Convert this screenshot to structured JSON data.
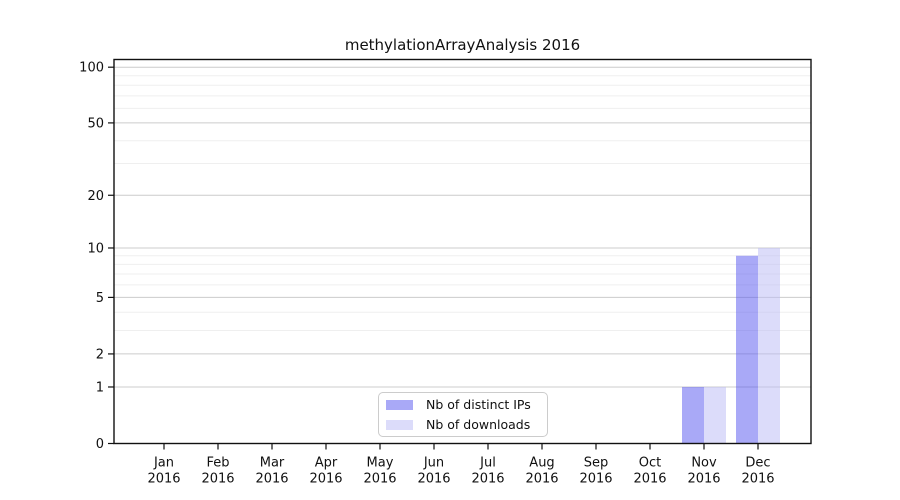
{
  "chart_data": {
    "type": "bar",
    "title": "methylationArrayAnalysis 2016",
    "categories": [
      "Jan",
      "Feb",
      "Mar",
      "Apr",
      "May",
      "Jun",
      "Jul",
      "Aug",
      "Sep",
      "Oct",
      "Nov",
      "Dec"
    ],
    "x_year_label": "2016",
    "series": [
      {
        "name": "Nb of distinct IPs",
        "color": "#a9a9f7",
        "values": [
          0,
          0,
          0,
          0,
          0,
          0,
          0,
          0,
          0,
          0,
          1,
          9
        ]
      },
      {
        "name": "Nb of downloads",
        "color": "#dcdcfa",
        "values": [
          0,
          0,
          0,
          0,
          0,
          0,
          0,
          0,
          0,
          0,
          1,
          10
        ]
      }
    ],
    "y_axis": {
      "scale": "log1p",
      "ticks": [
        0,
        1,
        2,
        5,
        10,
        20,
        50,
        100
      ],
      "minor_ticks": [
        3,
        4,
        6,
        7,
        8,
        9,
        30,
        40,
        60,
        70,
        80,
        90
      ],
      "ylim": [
        0,
        110
      ]
    },
    "xlabel": "",
    "ylabel": "",
    "grid": "horizontal",
    "legend_position": "bottom-center"
  },
  "colors": {
    "grid_major": "#cccccc",
    "grid_minor": "#efefef",
    "axis": "#111111",
    "text": "#111111",
    "background": "#ffffff"
  }
}
